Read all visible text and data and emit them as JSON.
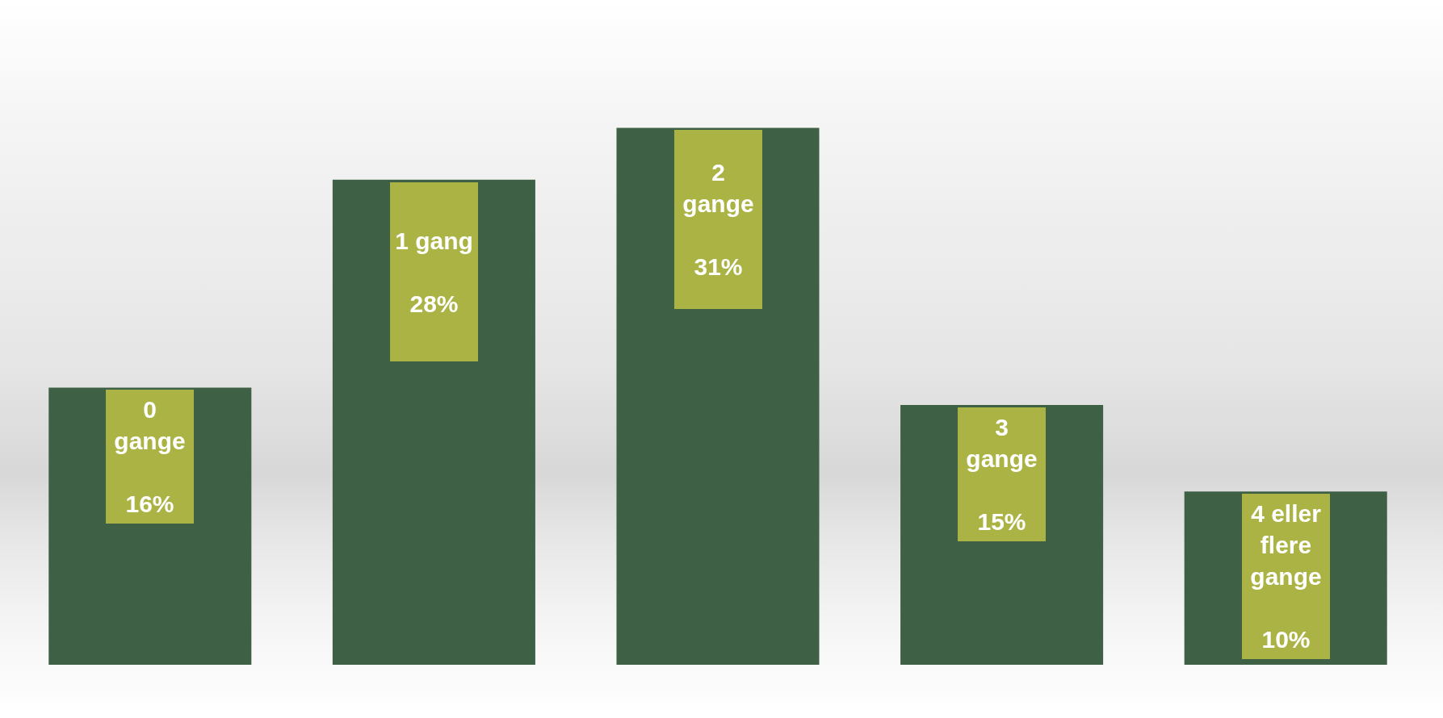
{
  "chart_data": {
    "type": "bar",
    "categories": [
      "0 gange",
      "1 gang",
      "2 gange",
      "3 gange",
      "4 eller flere gange"
    ],
    "values": [
      16,
      28,
      31,
      15,
      10
    ],
    "value_labels": [
      "16%",
      "28%",
      "31%",
      "15%",
      "10%"
    ],
    "color": "#3e6045",
    "tick_labels": false
  }
}
